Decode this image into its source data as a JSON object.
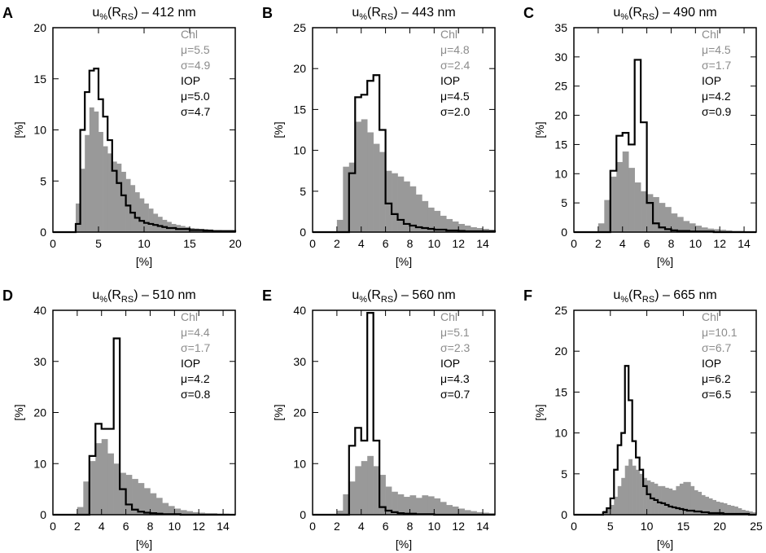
{
  "colors": {
    "chl": "#999999",
    "chl_text": "#8c8c8c",
    "iop": "#000000"
  },
  "xlabel": "[%]",
  "ylabel": "[%]",
  "chl_label": "Chl",
  "iop_label": "IOP",
  "chart_data": [
    {
      "type": "histogram",
      "panel": "A",
      "title_prefix": "u",
      "title_sub1": "%",
      "title_mid": "(R",
      "title_sub2": "RS",
      "title_suffix": ") – 412 nm",
      "xlim": [
        0,
        20
      ],
      "ylim": [
        0,
        20
      ],
      "xticks": [
        0,
        5,
        10,
        15,
        20
      ],
      "xticklabels": [
        "0",
        "5",
        "10",
        "15",
        "20"
      ],
      "yticks": [
        0,
        5,
        10,
        15,
        20
      ],
      "yticklabels": [
        "0",
        "5",
        "10",
        "15",
        "20"
      ],
      "bin_start": 0,
      "bin_width": 0.5,
      "chl": [
        0,
        0,
        0,
        0,
        0,
        2.8,
        6.2,
        9.5,
        12.2,
        11.8,
        9.8,
        8.4,
        7.7,
        6.9,
        6.7,
        5.9,
        5.2,
        4.6,
        3.9,
        3.3,
        2.8,
        2.3,
        1.8,
        1.5,
        1.2,
        1.0,
        0.8,
        0.7,
        0.6,
        0.5,
        0.4,
        0.35,
        0.3,
        0.3,
        0.25,
        0.2,
        0.2,
        0.15,
        0.15,
        0.1
      ],
      "iop": [
        0,
        0,
        0,
        0,
        0,
        0.8,
        10.0,
        13.7,
        15.8,
        16.0,
        13.0,
        11.3,
        9.0,
        6.0,
        4.8,
        3.6,
        2.6,
        1.9,
        1.4,
        1.1,
        0.9,
        0.8,
        0.7,
        0.6,
        0.5,
        0.4,
        0.4,
        0.3,
        0.3,
        0.3,
        0.2,
        0.2,
        0.2,
        0.15,
        0.15,
        0.1,
        0.1,
        0.1,
        0.1,
        0.1
      ],
      "stats": {
        "chl_mu": "μ=5.5",
        "chl_sigma": "σ=4.9",
        "iop_mu": "μ=5.0",
        "iop_sigma": "σ=4.7"
      }
    },
    {
      "type": "histogram",
      "panel": "B",
      "title_prefix": "u",
      "title_sub1": "%",
      "title_mid": "(R",
      "title_sub2": "RS",
      "title_suffix": ") – 443 nm",
      "xlim": [
        0,
        15
      ],
      "ylim": [
        0,
        25
      ],
      "xticks": [
        0,
        2,
        4,
        6,
        8,
        10,
        12,
        14
      ],
      "xticklabels": [
        "0",
        "2",
        "4",
        "6",
        "8",
        "10",
        "12",
        "14"
      ],
      "yticks": [
        0,
        5,
        10,
        15,
        20,
        25
      ],
      "yticklabels": [
        "0",
        "5",
        "10",
        "15",
        "20",
        "25"
      ],
      "bin_start": 2.0,
      "bin_width": 0.5,
      "chl": [
        1.5,
        8.0,
        8.5,
        13.5,
        13.8,
        12.2,
        10.8,
        9.8,
        7.5,
        7.2,
        6.8,
        6.2,
        5.6,
        4.6,
        3.8,
        3.0,
        2.6,
        2.0,
        1.6,
        1.3,
        1.0,
        0.8,
        0.6,
        0.5,
        0.4,
        0.3
      ],
      "iop": [
        0,
        0,
        7.2,
        16.5,
        16.8,
        18.5,
        19.2,
        12.5,
        3.5,
        2.2,
        1.5,
        1.0,
        0.8,
        0.6,
        0.5,
        0.4,
        0.3,
        0.3,
        0.2,
        0.2,
        0.15,
        0.1,
        0.1,
        0.1,
        0.1,
        0.1
      ],
      "stats": {
        "chl_mu": "μ=4.8",
        "chl_sigma": "σ=2.4",
        "iop_mu": "μ=4.5",
        "iop_sigma": "σ=2.0"
      }
    },
    {
      "type": "histogram",
      "panel": "C",
      "title_prefix": "u",
      "title_sub1": "%",
      "title_mid": "(R",
      "title_sub2": "RS",
      "title_suffix": ") – 490 nm",
      "xlim": [
        0,
        15
      ],
      "ylim": [
        0,
        35
      ],
      "xticks": [
        0,
        2,
        4,
        6,
        8,
        10,
        12,
        14
      ],
      "xticklabels": [
        "0",
        "2",
        "4",
        "6",
        "8",
        "10",
        "12",
        "14"
      ],
      "yticks": [
        0,
        5,
        10,
        15,
        20,
        25,
        30,
        35
      ],
      "yticklabels": [
        "0",
        "5",
        "10",
        "15",
        "20",
        "25",
        "30",
        "35"
      ],
      "bin_start": 2.0,
      "bin_width": 0.5,
      "chl": [
        1.5,
        5.5,
        9.5,
        12.0,
        13.8,
        11.0,
        8.5,
        7.0,
        6.5,
        6.0,
        5.0,
        4.3,
        3.2,
        2.6,
        1.9,
        1.5,
        1.1,
        0.8,
        0.6,
        0.5,
        0.4,
        0.3,
        0.2,
        0.2,
        0.1,
        0.1
      ],
      "iop": [
        0,
        0,
        10.5,
        16.5,
        17.0,
        15.0,
        29.5,
        18.8,
        5.0,
        1.5,
        0.8,
        0.5,
        0.3,
        0.2,
        0.2,
        0.1,
        0.1,
        0.1,
        0.1,
        0,
        0,
        0,
        0,
        0,
        0,
        0
      ],
      "stats": {
        "chl_mu": "μ=4.5",
        "chl_sigma": "σ=1.7",
        "iop_mu": "μ=4.2",
        "iop_sigma": "σ=0.9"
      }
    },
    {
      "type": "histogram",
      "panel": "D",
      "title_prefix": "u",
      "title_sub1": "%",
      "title_mid": "(R",
      "title_sub2": "RS",
      "title_suffix": ") – 510 nm",
      "xlim": [
        0,
        15
      ],
      "ylim": [
        0,
        40
      ],
      "xticks": [
        0,
        2,
        4,
        6,
        8,
        10,
        12,
        14
      ],
      "xticklabels": [
        "0",
        "2",
        "4",
        "6",
        "8",
        "10",
        "12",
        "14"
      ],
      "yticks": [
        0,
        10,
        20,
        30,
        40
      ],
      "yticklabels": [
        "0",
        "10",
        "20",
        "30",
        "40"
      ],
      "bin_start": 2.0,
      "bin_width": 0.5,
      "chl": [
        1.5,
        6.5,
        10.5,
        14.0,
        14.8,
        12.0,
        10.0,
        8.2,
        7.8,
        7.0,
        6.2,
        5.2,
        4.2,
        3.3,
        2.3,
        1.7,
        1.2,
        0.9,
        0.7,
        0.5,
        0.4,
        0.3,
        0.3,
        0.2,
        0.2,
        0.1
      ],
      "iop": [
        0,
        0,
        11.5,
        17.8,
        16.8,
        16.8,
        34.5,
        5.0,
        2.0,
        1.0,
        0.6,
        0.4,
        0.3,
        0.2,
        0.1,
        0.1,
        0.1,
        0,
        0,
        0,
        0,
        0,
        0,
        0,
        0,
        0
      ],
      "stats": {
        "chl_mu": "μ=4.4",
        "chl_sigma": "σ=1.7",
        "iop_mu": "μ=4.2",
        "iop_sigma": "σ=0.8"
      }
    },
    {
      "type": "histogram",
      "panel": "E",
      "title_prefix": "u",
      "title_sub1": "%",
      "title_mid": "(R",
      "title_sub2": "RS",
      "title_suffix": ") – 560 nm",
      "xlim": [
        0,
        15
      ],
      "ylim": [
        0,
        40
      ],
      "xticks": [
        0,
        2,
        4,
        6,
        8,
        10,
        12,
        14
      ],
      "xticklabels": [
        "0",
        "2",
        "4",
        "6",
        "8",
        "10",
        "12",
        "14"
      ],
      "yticks": [
        0,
        10,
        20,
        30,
        40
      ],
      "yticklabels": [
        "0",
        "10",
        "20",
        "30",
        "40"
      ],
      "bin_start": 2.0,
      "bin_width": 0.5,
      "chl": [
        0.8,
        4.0,
        6.5,
        9.5,
        10.5,
        11.5,
        9.5,
        7.8,
        5.5,
        4.5,
        4.0,
        3.5,
        3.8,
        3.3,
        3.8,
        3.6,
        3.2,
        2.5,
        1.9,
        1.6,
        1.2,
        0.9,
        0.7,
        0.5,
        0.4,
        0.3
      ],
      "iop": [
        0,
        0,
        13.5,
        17.0,
        14.5,
        39.5,
        14.5,
        1.5,
        0.8,
        0.5,
        0.3,
        0.2,
        0.2,
        0.1,
        0.1,
        0.1,
        0,
        0,
        0,
        0,
        0,
        0,
        0,
        0,
        0,
        0
      ],
      "stats": {
        "chl_mu": "μ=5.1",
        "chl_sigma": "σ=2.3",
        "iop_mu": "μ=4.3",
        "iop_sigma": "σ=0.7"
      }
    },
    {
      "type": "histogram",
      "panel": "F",
      "title_prefix": "u",
      "title_sub1": "%",
      "title_mid": "(R",
      "title_sub2": "RS",
      "title_suffix": ") – 665 nm",
      "xlim": [
        0,
        25
      ],
      "ylim": [
        0,
        25
      ],
      "xticks": [
        0,
        5,
        10,
        15,
        20,
        25
      ],
      "xticklabels": [
        "0",
        "5",
        "10",
        "15",
        "20",
        "25"
      ],
      "yticks": [
        0,
        5,
        10,
        15,
        20,
        25
      ],
      "yticklabels": [
        "0",
        "5",
        "10",
        "15",
        "20",
        "25"
      ],
      "bin_start": 0,
      "bin_width": 0.5,
      "chl": [
        0,
        0,
        0,
        0,
        0,
        0,
        0,
        0,
        0.5,
        0.8,
        1.2,
        2.2,
        3.5,
        4.5,
        6.0,
        6.8,
        6.0,
        5.5,
        5.0,
        4.5,
        4.2,
        4.0,
        3.8,
        3.5,
        3.5,
        3.3,
        3.2,
        3.0,
        3.5,
        3.8,
        4.0,
        4.0,
        3.5,
        3.0,
        2.8,
        2.4,
        2.2,
        2.0,
        1.8,
        1.6,
        1.5,
        1.4,
        1.2,
        1.1,
        1.0,
        0.8,
        0.6,
        0.5,
        0.4,
        0.3
      ],
      "iop": [
        0,
        0,
        0,
        0,
        0,
        0,
        0,
        0,
        0.3,
        0.8,
        2.0,
        5.5,
        8.5,
        10.0,
        18.2,
        14.0,
        9.0,
        7.0,
        5.5,
        3.5,
        2.5,
        2.0,
        1.8,
        1.5,
        1.4,
        1.2,
        1.0,
        0.9,
        0.8,
        0.7,
        0.6,
        0.5,
        0.5,
        0.4,
        0.4,
        0.3,
        0.3,
        0.2,
        0.2,
        0.2,
        0.2,
        0.1,
        0.1,
        0.1,
        0.1,
        0.1,
        0.1,
        0.1,
        0,
        0
      ],
      "stats": {
        "chl_mu": "μ=10.1",
        "chl_sigma": "σ=6.7",
        "iop_mu": "μ=6.2",
        "iop_sigma": "σ=6.5"
      }
    }
  ]
}
